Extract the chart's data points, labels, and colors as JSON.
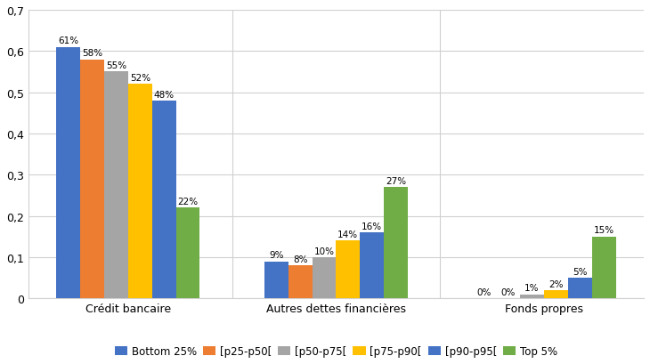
{
  "categories": [
    "Crédit bancaire",
    "Autres dettes financières",
    "Fonds propres"
  ],
  "series": [
    {
      "label": "Bottom 25%",
      "color": "#4472C4",
      "values": [
        0.61,
        0.09,
        0.0
      ]
    },
    {
      "label": "[p25-p50[",
      "color": "#ED7D31",
      "values": [
        0.58,
        0.08,
        0.0
      ]
    },
    {
      "label": "[p50-p75[",
      "color": "#A5A5A5",
      "values": [
        0.55,
        0.1,
        0.01
      ]
    },
    {
      "label": "[p75-p90[",
      "color": "#FFC000",
      "values": [
        0.52,
        0.14,
        0.02
      ]
    },
    {
      "label": "[p90-p95[",
      "color": "#4472C4",
      "values": [
        0.48,
        0.16,
        0.05
      ]
    },
    {
      "label": "Top 5%",
      "color": "#70AD47",
      "values": [
        0.22,
        0.27,
        0.15
      ]
    }
  ],
  "series_colors": [
    "#4472C4",
    "#ED7D31",
    "#A5A5A5",
    "#FFC000",
    "#4472C4",
    "#70AD47"
  ],
  "bar_labels": [
    [
      "61%",
      "58%",
      "55%",
      "52%",
      "48%",
      "22%"
    ],
    [
      "9%",
      "8%",
      "10%",
      "14%",
      "16%",
      "27%"
    ],
    [
      "0%",
      "0%",
      "1%",
      "2%",
      "5%",
      "15%"
    ]
  ],
  "ylim": [
    0,
    0.7
  ],
  "yticks": [
    0.0,
    0.1,
    0.2,
    0.3,
    0.4,
    0.5,
    0.6,
    0.7
  ],
  "ytick_labels": [
    "0",
    "0,1",
    "0,2",
    "0,3",
    "0,4",
    "0,5",
    "0,6",
    "0,7"
  ],
  "bar_width": 0.115,
  "group_centers": [
    0.0,
    1.0,
    2.0
  ],
  "xlim": [
    -0.48,
    2.48
  ],
  "background_color": "#FFFFFF",
  "plot_bg_color": "#FFFFFF",
  "grid_color": "#D0D0D0",
  "label_fontsize": 7.5,
  "legend_fontsize": 8.5,
  "tick_fontsize": 9,
  "axis_label_fontsize": 9,
  "p90_95_color": "#4472C4"
}
